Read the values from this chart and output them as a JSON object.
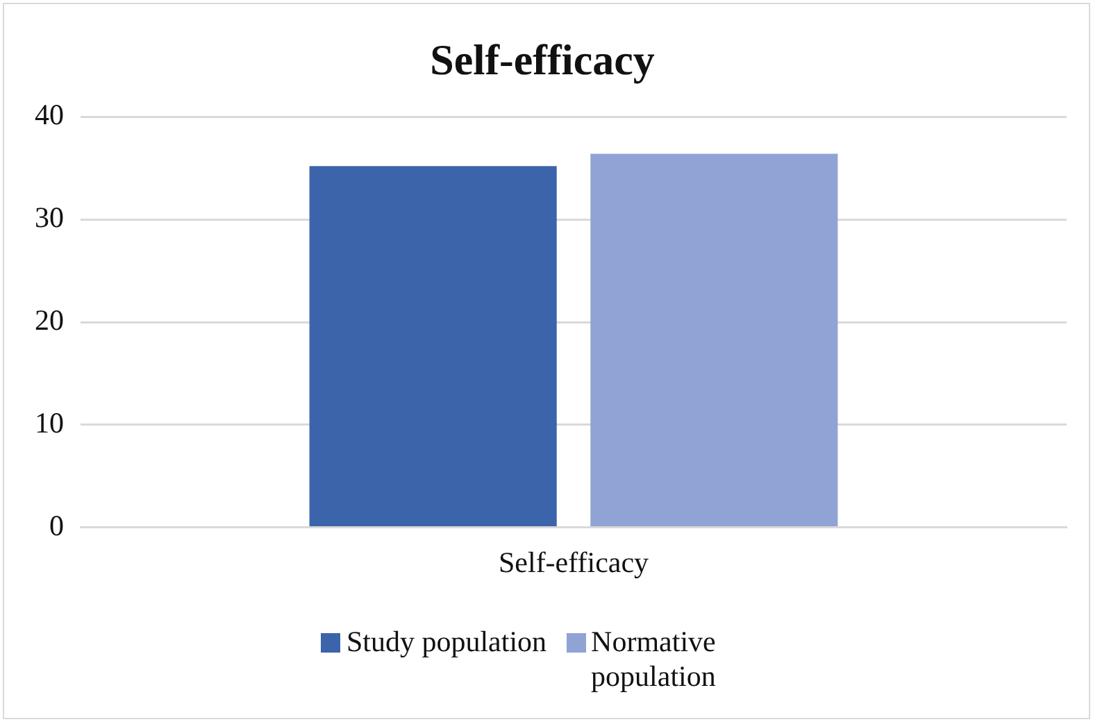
{
  "chart_data": {
    "type": "bar",
    "title": "Self-efficacy",
    "categories": [
      "Self-efficacy"
    ],
    "series": [
      {
        "name": "Study population",
        "color": "#3c64ab",
        "values": [
          35.2
        ]
      },
      {
        "name": "Normative population",
        "color": "#8fa3d4",
        "values": [
          36.4
        ]
      }
    ],
    "ylim": [
      0,
      40
    ],
    "yticks": [
      0,
      10,
      20,
      30,
      40
    ],
    "grid": "y",
    "legend": "bottom"
  }
}
